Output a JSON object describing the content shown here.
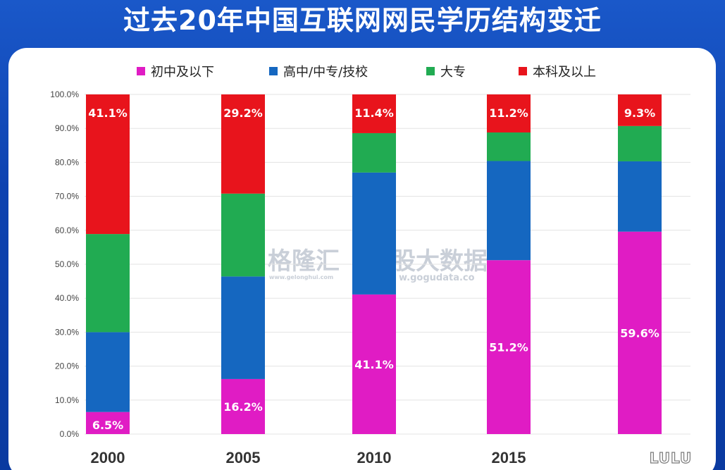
{
  "title": "过去20年中国互联网网民学历结构变迁",
  "chart_data": {
    "type": "bar",
    "stacked": true,
    "categories": [
      "2000",
      "2005",
      "2010",
      "2015",
      ""
    ],
    "ylim": [
      0,
      100
    ],
    "yticks": [
      "0.0%",
      "10.0%",
      "20.0%",
      "30.0%",
      "40.0%",
      "50.0%",
      "60.0%",
      "70.0%",
      "80.0%",
      "90.0%",
      "100.0%"
    ],
    "grid": true,
    "legend_position": "top",
    "series": [
      {
        "name": "初中及以下",
        "color": "#e01cc4",
        "values": [
          6.5,
          16.2,
          41.1,
          51.2,
          59.6
        ],
        "labels": [
          "6.5%",
          "16.2%",
          "41.1%",
          "51.2%",
          "59.6%"
        ]
      },
      {
        "name": "高中/中专/技校",
        "color": "#1567c0",
        "values": [
          23.5,
          30.2,
          35.9,
          29.2,
          20.7
        ],
        "labels": [
          "",
          "",
          "",
          "",
          ""
        ]
      },
      {
        "name": "大专",
        "color": "#21ab52",
        "values": [
          28.9,
          24.4,
          11.6,
          8.4,
          10.4
        ],
        "labels": [
          "",
          "",
          "",
          "",
          ""
        ]
      },
      {
        "name": "本科及以上",
        "color": "#e8141c",
        "values": [
          41.1,
          29.2,
          11.4,
          11.2,
          9.3
        ],
        "labels": [
          "41.1%",
          "29.2%",
          "11.4%",
          "11.2%",
          "9.3%"
        ]
      }
    ]
  },
  "watermark": {
    "brand": "格隆汇",
    "brand_url": "www.gelonghui.com",
    "data_brand": "股大数据",
    "data_url": "w.gogudata.co"
  },
  "corner_tag": "LULU"
}
